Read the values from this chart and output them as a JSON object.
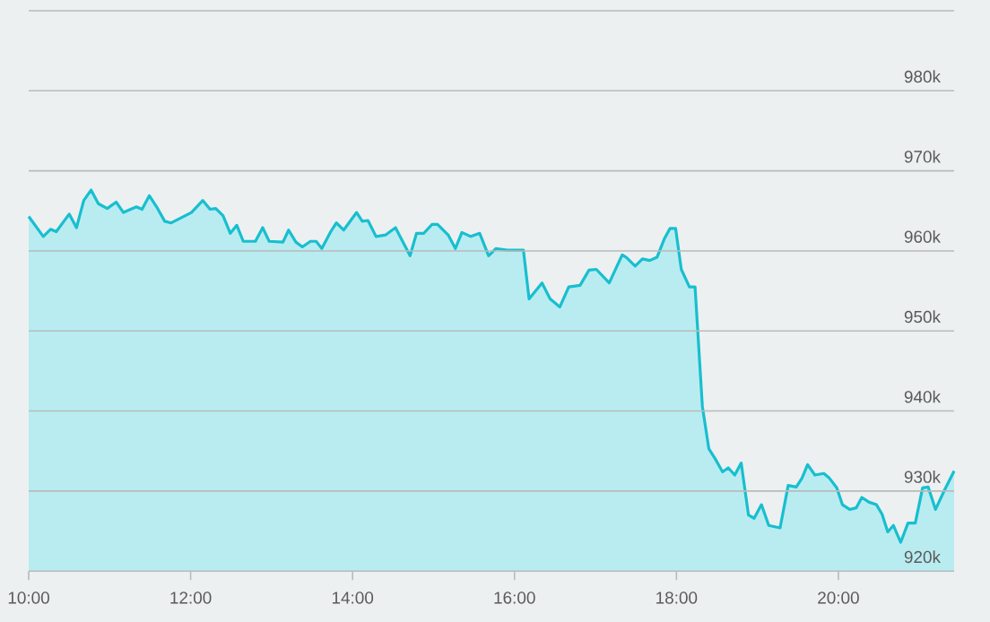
{
  "chart_data": {
    "type": "area",
    "x": [
      10.0,
      10.18,
      10.27,
      10.34,
      10.5,
      10.59,
      10.68,
      10.77,
      10.86,
      10.97,
      11.08,
      11.17,
      11.33,
      11.4,
      11.49,
      11.58,
      11.68,
      11.76,
      12.01,
      12.15,
      12.24,
      12.31,
      12.4,
      12.49,
      12.57,
      12.65,
      12.8,
      12.89,
      12.97,
      13.14,
      13.21,
      13.3,
      13.38,
      13.48,
      13.55,
      13.62,
      13.73,
      13.8,
      13.89,
      14.05,
      14.12,
      14.19,
      14.29,
      14.41,
      14.53,
      14.71,
      14.79,
      14.88,
      14.98,
      15.05,
      15.18,
      15.27,
      15.35,
      15.46,
      15.57,
      15.68,
      15.77,
      15.91,
      16.11,
      16.18,
      16.34,
      16.44,
      16.56,
      16.67,
      16.81,
      16.92,
      17.01,
      17.17,
      17.33,
      17.38,
      17.49,
      17.58,
      17.67,
      17.76,
      17.85,
      17.92,
      17.99,
      18.06,
      18.16,
      18.23,
      18.32,
      18.4,
      18.48,
      18.57,
      18.64,
      18.72,
      18.8,
      18.89,
      18.96,
      19.05,
      19.14,
      19.28,
      19.38,
      19.48,
      19.55,
      19.62,
      19.71,
      19.82,
      19.89,
      19.98,
      20.05,
      20.14,
      20.22,
      20.29,
      20.38,
      20.47,
      20.54,
      20.61,
      20.68,
      20.77,
      20.86,
      20.95,
      21.04,
      21.11,
      21.2,
      21.31,
      21.43
    ],
    "series": [
      {
        "color": "#17bfcf",
        "values": [
          964300,
          961800,
          962700,
          962400,
          964600,
          962900,
          966300,
          967600,
          965900,
          965300,
          966100,
          964800,
          965500,
          965200,
          966900,
          965500,
          963700,
          963500,
          964800,
          966300,
          965200,
          965300,
          964400,
          962200,
          963200,
          961200,
          961200,
          962900,
          961200,
          961100,
          962600,
          961100,
          960500,
          961200,
          961200,
          960300,
          962400,
          963500,
          962600,
          964800,
          963700,
          963800,
          961800,
          962000,
          962900,
          959400,
          962200,
          962200,
          963300,
          963300,
          962000,
          960300,
          962300,
          961800,
          962200,
          959400,
          960300,
          960100,
          960100,
          954000,
          956000,
          954000,
          953000,
          955500,
          955700,
          957600,
          957700,
          956000,
          959500,
          959200,
          958100,
          959000,
          958800,
          959200,
          961500,
          962800,
          962800,
          957700,
          955500,
          955500,
          940600,
          935300,
          934000,
          932400,
          932900,
          932000,
          933500,
          927000,
          926600,
          928300,
          925700,
          925400,
          930700,
          930500,
          931600,
          933300,
          932000,
          932200,
          931600,
          930400,
          928300,
          927700,
          927900,
          929200,
          928600,
          928300,
          927100,
          924900,
          925700,
          923600,
          926000,
          926000,
          930400,
          930500,
          927700,
          930100,
          932500
        ]
      }
    ],
    "xlim": [
      10,
      21.43
    ],
    "ylim": [
      920000,
      990000
    ],
    "xticks": [
      {
        "value": 10,
        "label": "10:00"
      },
      {
        "value": 12,
        "label": "12:00"
      },
      {
        "value": 14,
        "label": "14:00"
      },
      {
        "value": 16,
        "label": "16:00"
      },
      {
        "value": 18,
        "label": "18:00"
      },
      {
        "value": 20,
        "label": "20:00"
      }
    ],
    "yticks": [
      {
        "value": 920000,
        "label": "920k"
      },
      {
        "value": 930000,
        "label": "930k"
      },
      {
        "value": 940000,
        "label": "940k"
      },
      {
        "value": 950000,
        "label": "950k"
      },
      {
        "value": 960000,
        "label": "960k"
      },
      {
        "value": 970000,
        "label": "970k"
      },
      {
        "value": 980000,
        "label": "980k"
      },
      {
        "value": 990000,
        "label": null
      }
    ],
    "grid": "y"
  }
}
